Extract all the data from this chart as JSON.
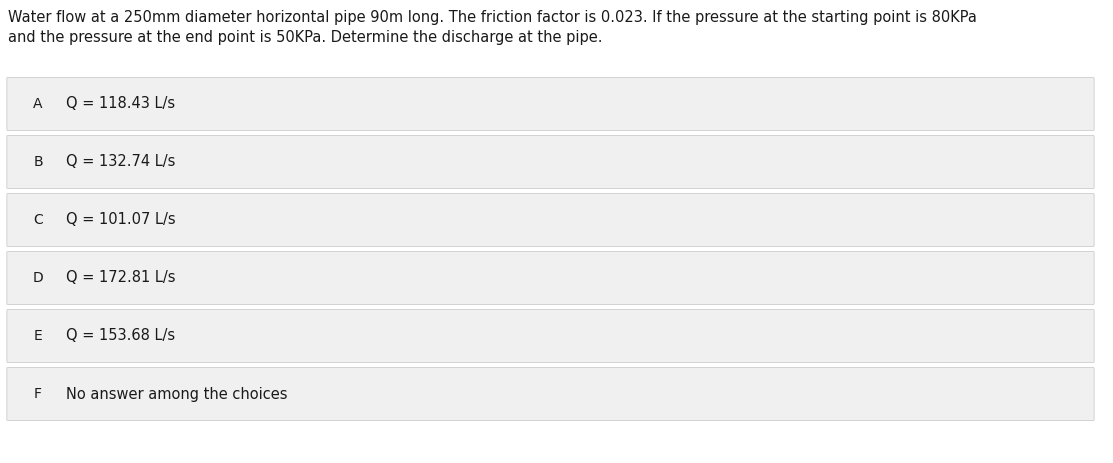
{
  "question_line1": "Water flow at a 250mm diameter horizontal pipe 90m long. The friction factor is 0.023. If the pressure at the starting point is 80KPa",
  "question_line2": "and the pressure at the end point is 50KPa. Determine the discharge at the pipe.",
  "options": [
    {
      "label": "A",
      "text": "Q = 118.43 L/s"
    },
    {
      "label": "B",
      "text": "Q = 132.74 L/s"
    },
    {
      "label": "C",
      "text": "Q = 101.07 L/s"
    },
    {
      "label": "D",
      "text": "Q = 172.81 L/s"
    },
    {
      "label": "E",
      "text": "Q = 153.68 L/s"
    },
    {
      "label": "F",
      "text": "No answer among the choices"
    }
  ],
  "bg_color": "#ffffff",
  "option_bg_color": "#f0f0f0",
  "option_border_color": "#cccccc",
  "text_color": "#1a1a1a",
  "circle_edge_color": "#444444",
  "question_fontsize": 10.5,
  "option_fontsize": 10.5,
  "label_fontsize": 10.0,
  "fig_width": 11.13,
  "fig_height": 4.63,
  "dpi": 100
}
